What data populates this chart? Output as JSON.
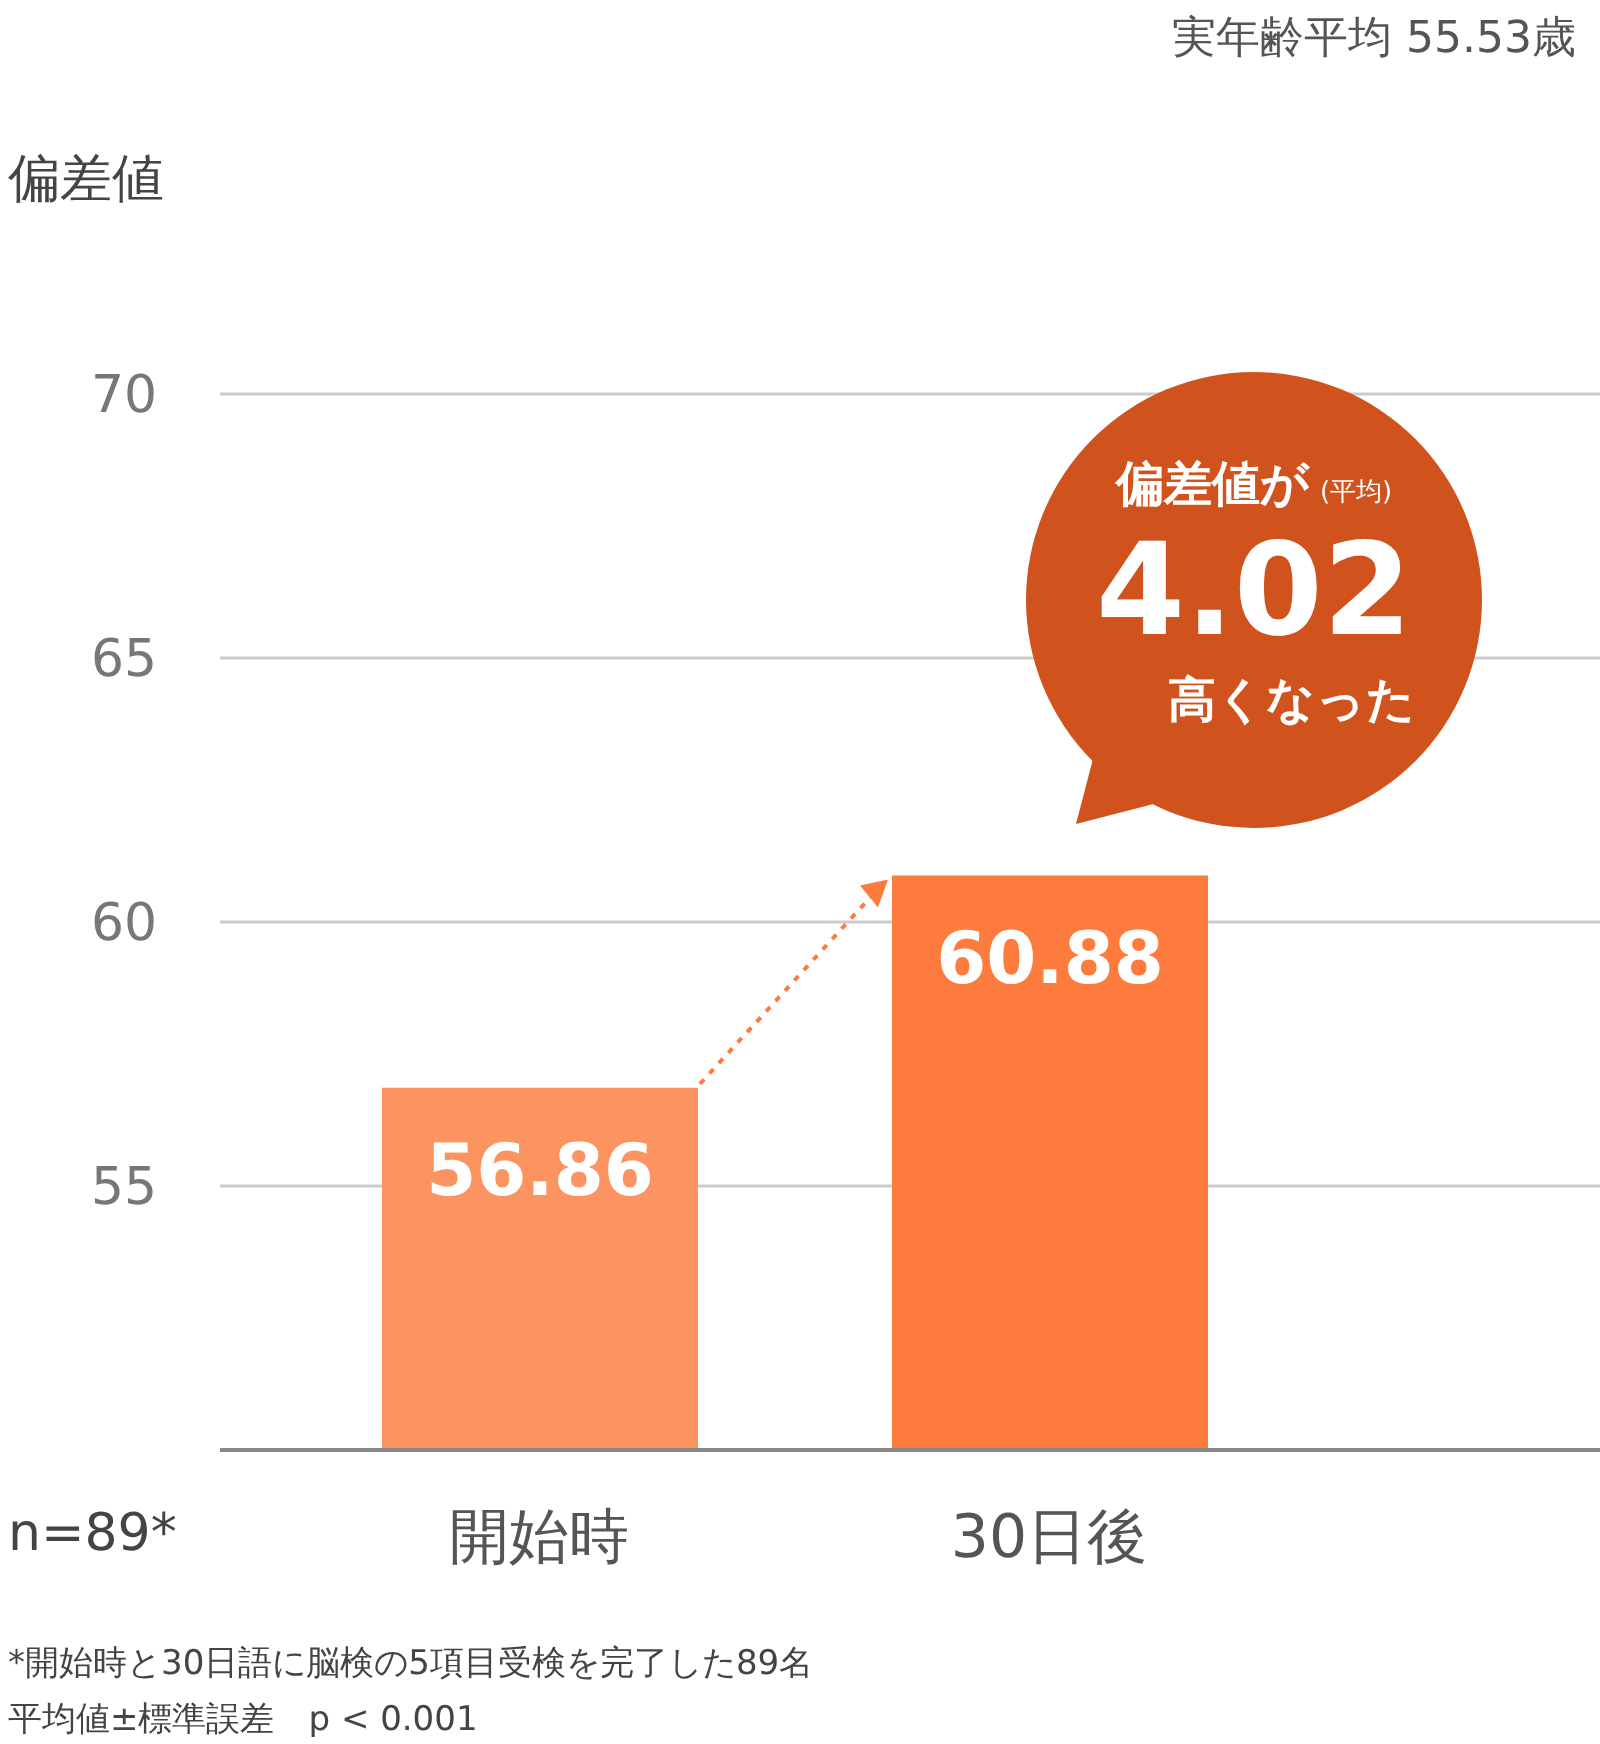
{
  "chart_data": {
    "type": "bar",
    "ylabel": "偏差値",
    "categories": [
      "開始時",
      "30日後"
    ],
    "values": [
      56.86,
      60.88
    ],
    "colors": [
      "#fc9462",
      "#fc7b3d"
    ],
    "ylim": [
      50,
      70
    ],
    "yticks": [
      55,
      60,
      65,
      70
    ],
    "grid": "y",
    "data_labels": true,
    "annotations": [
      "実年齢平均 55.53歳",
      "n=89*",
      "*開始時と30日語に脳検の5項目受検を完了した89名",
      "平均値±標準誤差　p < 0.001",
      "偏差値が",
      "(平均)",
      "4.02",
      "高くなった"
    ]
  }
}
